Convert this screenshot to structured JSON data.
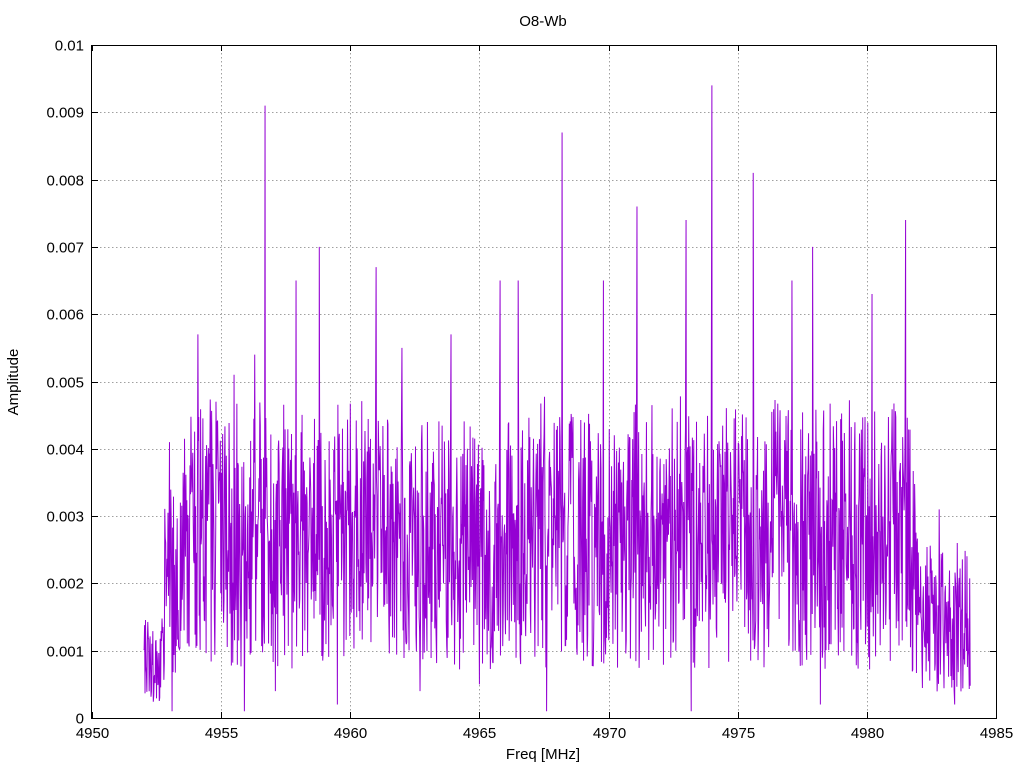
{
  "chart_data": {
    "type": "line",
    "title": "O8-Wb",
    "xlabel": "Freq [MHz]",
    "ylabel": "Amplitude",
    "xlim": [
      4950,
      4985
    ],
    "ylim": [
      0,
      0.01
    ],
    "x_ticks": [
      "4950",
      "4955",
      "4960",
      "4965",
      "4970",
      "4975",
      "4980",
      "4985"
    ],
    "y_ticks": [
      "0",
      "0.001",
      "0.002",
      "0.003",
      "0.004",
      "0.005",
      "0.006",
      "0.007",
      "0.008",
      "0.009",
      "0.01"
    ],
    "grid": true,
    "series": [
      {
        "color": "#9400d3",
        "x_start": 4952.0,
        "x_end": 4984.0,
        "sampling": "dense noisy spectrum; representative points including labeled peaks",
        "peaks": [
          {
            "x": 4953.0,
            "y": 0.0041
          },
          {
            "x": 4954.1,
            "y": 0.0057
          },
          {
            "x": 4954.8,
            "y": 0.0047
          },
          {
            "x": 4955.5,
            "y": 0.0051
          },
          {
            "x": 4956.3,
            "y": 0.0054
          },
          {
            "x": 4956.7,
            "y": 0.0091
          },
          {
            "x": 4957.9,
            "y": 0.0065
          },
          {
            "x": 4958.8,
            "y": 0.007
          },
          {
            "x": 4961.0,
            "y": 0.0067
          },
          {
            "x": 4962.0,
            "y": 0.0055
          },
          {
            "x": 4963.9,
            "y": 0.0057
          },
          {
            "x": 4965.8,
            "y": 0.0065
          },
          {
            "x": 4966.5,
            "y": 0.0065
          },
          {
            "x": 4968.2,
            "y": 0.0087
          },
          {
            "x": 4969.8,
            "y": 0.0065
          },
          {
            "x": 4971.1,
            "y": 0.0076
          },
          {
            "x": 4973.0,
            "y": 0.0074
          },
          {
            "x": 4974.0,
            "y": 0.0094
          },
          {
            "x": 4975.6,
            "y": 0.0081
          },
          {
            "x": 4977.1,
            "y": 0.0065
          },
          {
            "x": 4977.9,
            "y": 0.007
          },
          {
            "x": 4980.2,
            "y": 0.0063
          },
          {
            "x": 4981.5,
            "y": 0.0074
          },
          {
            "x": 4982.8,
            "y": 0.0031
          },
          {
            "x": 4983.5,
            "y": 0.0026
          }
        ],
        "troughs": [
          {
            "x": 4953.1,
            "y": 0.0001
          },
          {
            "x": 4955.9,
            "y": 0.0001
          },
          {
            "x": 4957.1,
            "y": 0.0004
          },
          {
            "x": 4959.5,
            "y": 0.0002
          },
          {
            "x": 4962.7,
            "y": 0.0004
          },
          {
            "x": 4965.0,
            "y": 0.0005
          },
          {
            "x": 4967.6,
            "y": 0.0001
          },
          {
            "x": 4973.2,
            "y": 0.0001
          },
          {
            "x": 4978.2,
            "y": 0.0002
          },
          {
            "x": 4983.4,
            "y": 0.0002
          }
        ]
      }
    ]
  }
}
